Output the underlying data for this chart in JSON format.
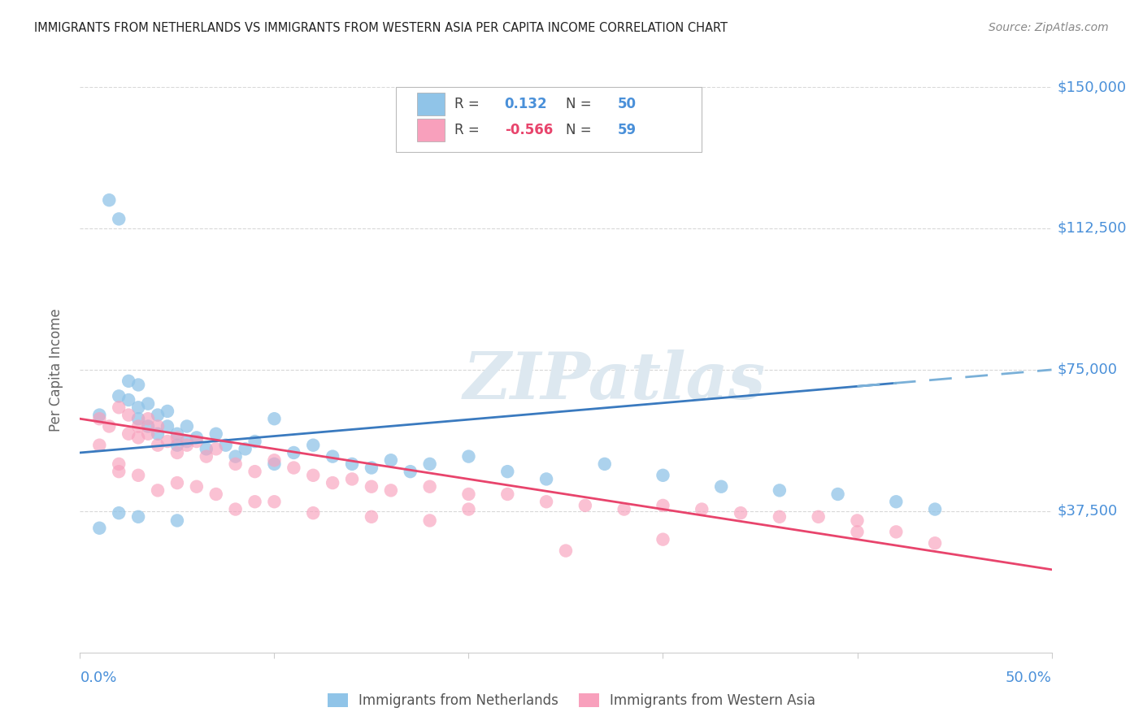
{
  "title": "IMMIGRANTS FROM NETHERLANDS VS IMMIGRANTS FROM WESTERN ASIA PER CAPITA INCOME CORRELATION CHART",
  "source": "Source: ZipAtlas.com",
  "ylabel": "Per Capita Income",
  "xmin": 0.0,
  "xmax": 0.5,
  "ymin": 0,
  "ymax": 150000,
  "ytick_vals": [
    37500,
    75000,
    112500,
    150000
  ],
  "blue_color": "#90c4e8",
  "pink_color": "#f8a0bc",
  "blue_line_color": "#3a7abf",
  "pink_line_color": "#e8446c",
  "grid_color": "#d8d8d8",
  "title_color": "#222222",
  "source_color": "#888888",
  "axis_tick_color": "#4a90d9",
  "ylabel_color": "#666666",
  "watermark_color": "#dde8f0",
  "legend_r1_val": "0.132",
  "legend_r1_n": "50",
  "legend_r2_val": "-0.566",
  "legend_r2_n": "59",
  "nl_x": [
    0.01,
    0.015,
    0.02,
    0.02,
    0.025,
    0.025,
    0.03,
    0.03,
    0.03,
    0.035,
    0.035,
    0.04,
    0.04,
    0.045,
    0.045,
    0.05,
    0.05,
    0.055,
    0.055,
    0.06,
    0.065,
    0.07,
    0.075,
    0.08,
    0.085,
    0.09,
    0.1,
    0.1,
    0.11,
    0.12,
    0.13,
    0.14,
    0.15,
    0.16,
    0.17,
    0.18,
    0.2,
    0.22,
    0.24,
    0.27,
    0.3,
    0.33,
    0.36,
    0.39,
    0.42,
    0.44,
    0.01,
    0.02,
    0.03,
    0.05
  ],
  "nl_y": [
    63000,
    120000,
    115000,
    68000,
    72000,
    67000,
    71000,
    65000,
    62000,
    66000,
    60000,
    63000,
    58000,
    64000,
    60000,
    58000,
    55000,
    60000,
    56000,
    57000,
    54000,
    58000,
    55000,
    52000,
    54000,
    56000,
    62000,
    50000,
    53000,
    55000,
    52000,
    50000,
    49000,
    51000,
    48000,
    50000,
    52000,
    48000,
    46000,
    50000,
    47000,
    44000,
    43000,
    42000,
    40000,
    38000,
    33000,
    37000,
    36000,
    35000
  ],
  "wa_x": [
    0.01,
    0.015,
    0.02,
    0.025,
    0.025,
    0.03,
    0.03,
    0.035,
    0.035,
    0.04,
    0.04,
    0.045,
    0.05,
    0.05,
    0.055,
    0.06,
    0.065,
    0.07,
    0.08,
    0.09,
    0.1,
    0.11,
    0.12,
    0.13,
    0.14,
    0.15,
    0.16,
    0.18,
    0.2,
    0.22,
    0.24,
    0.26,
    0.28,
    0.3,
    0.32,
    0.34,
    0.36,
    0.38,
    0.4,
    0.42,
    0.44,
    0.02,
    0.04,
    0.06,
    0.08,
    0.1,
    0.15,
    0.2,
    0.3,
    0.4,
    0.01,
    0.02,
    0.03,
    0.05,
    0.07,
    0.09,
    0.12,
    0.18,
    0.25
  ],
  "wa_y": [
    62000,
    60000,
    65000,
    63000,
    58000,
    60000,
    57000,
    62000,
    58000,
    55000,
    60000,
    56000,
    57000,
    53000,
    55000,
    56000,
    52000,
    54000,
    50000,
    48000,
    51000,
    49000,
    47000,
    45000,
    46000,
    44000,
    43000,
    44000,
    42000,
    42000,
    40000,
    39000,
    38000,
    39000,
    38000,
    37000,
    36000,
    36000,
    35000,
    32000,
    29000,
    48000,
    43000,
    44000,
    38000,
    40000,
    36000,
    38000,
    30000,
    32000,
    55000,
    50000,
    47000,
    45000,
    42000,
    40000,
    37000,
    35000,
    27000
  ]
}
